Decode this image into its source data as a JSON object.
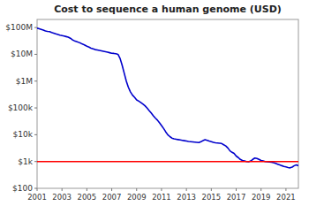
{
  "chart_data": {
    "type": "line",
    "title": "Cost to sequence a human genome (USD)",
    "color": "#0000cc",
    "log": "y",
    "grid": false,
    "xlim": [
      2001,
      2022
    ],
    "ylim": [
      100,
      200000000
    ],
    "xticks": [
      2001,
      2003,
      2005,
      2007,
      2009,
      2011,
      2013,
      2015,
      2017,
      2019,
      2021
    ],
    "yticks": [
      {
        "value": 100,
        "label": "$100"
      },
      {
        "value": 1000,
        "label": "$1k"
      },
      {
        "value": 10000,
        "label": "$10k"
      },
      {
        "value": 100000,
        "label": "$100k"
      },
      {
        "value": 1000000,
        "label": "$1M"
      },
      {
        "value": 10000000,
        "label": "$10M"
      },
      {
        "value": 100000000,
        "label": "$100M"
      }
    ],
    "reference_line": {
      "value": 1000,
      "color": "#ff0000"
    },
    "x": [
      2001.0,
      2001.17,
      2001.33,
      2001.5,
      2001.67,
      2001.83,
      2002.0,
      2002.17,
      2002.33,
      2002.5,
      2002.67,
      2002.83,
      2003.0,
      2003.17,
      2003.33,
      2003.5,
      2003.67,
      2003.83,
      2004.0,
      2004.17,
      2004.33,
      2004.5,
      2004.67,
      2004.83,
      2005.0,
      2005.17,
      2005.33,
      2005.5,
      2005.67,
      2005.83,
      2006.0,
      2006.17,
      2006.33,
      2006.5,
      2006.67,
      2006.83,
      2007.0,
      2007.17,
      2007.33,
      2007.5,
      2007.67,
      2007.83,
      2008.0,
      2008.17,
      2008.33,
      2008.5,
      2008.67,
      2008.83,
      2009.0,
      2009.17,
      2009.33,
      2009.5,
      2009.67,
      2009.83,
      2010.0,
      2010.17,
      2010.33,
      2010.5,
      2010.67,
      2010.83,
      2011.0,
      2011.17,
      2011.33,
      2011.5,
      2011.67,
      2011.83,
      2012.0,
      2012.17,
      2012.33,
      2012.5,
      2012.67,
      2012.83,
      2013.0,
      2013.17,
      2013.33,
      2013.5,
      2013.67,
      2013.83,
      2014.0,
      2014.17,
      2014.33,
      2014.5,
      2014.67,
      2014.83,
      2015.0,
      2015.17,
      2015.33,
      2015.5,
      2015.67,
      2015.83,
      2016.0,
      2016.17,
      2016.33,
      2016.5,
      2016.67,
      2016.83,
      2017.0,
      2017.17,
      2017.33,
      2017.5,
      2017.67,
      2017.83,
      2018.0,
      2018.17,
      2018.33,
      2018.5,
      2018.67,
      2018.83,
      2019.0,
      2019.17,
      2019.33,
      2019.5,
      2019.67,
      2019.83,
      2020.0,
      2020.17,
      2020.33,
      2020.5,
      2020.67,
      2020.83,
      2021.0,
      2021.17,
      2021.33,
      2021.5,
      2021.67,
      2021.83,
      2022.0
    ],
    "values": [
      95000000,
      90000000,
      85000000,
      80000000,
      75000000,
      72000000,
      70000000,
      65000000,
      62000000,
      58000000,
      55000000,
      52000000,
      50000000,
      48000000,
      46000000,
      44000000,
      40000000,
      35000000,
      32000000,
      30000000,
      28000000,
      26000000,
      24000000,
      22000000,
      20000000,
      18500000,
      17000000,
      16000000,
      15000000,
      14500000,
      14000000,
      13500000,
      13000000,
      12500000,
      12000000,
      11500000,
      11000000,
      10800000,
      10500000,
      10000000,
      7000000,
      4000000,
      2000000,
      1000000,
      600000,
      400000,
      300000,
      250000,
      200000,
      180000,
      160000,
      140000,
      120000,
      100000,
      80000,
      65000,
      52000,
      42000,
      35000,
      28000,
      22000,
      17000,
      13000,
      10000,
      8500,
      7500,
      7000,
      6800,
      6600,
      6400,
      6200,
      6000,
      5800,
      5600,
      5500,
      5400,
      5300,
      5200,
      5100,
      5500,
      6000,
      6500,
      6200,
      5800,
      5500,
      5200,
      5000,
      4900,
      4800,
      4700,
      4200,
      3800,
      3200,
      2500,
      2200,
      2000,
      1600,
      1400,
      1200,
      1100,
      1050,
      1000,
      980,
      1050,
      1200,
      1350,
      1300,
      1200,
      1100,
      1050,
      1000,
      980,
      960,
      940,
      900,
      850,
      800,
      750,
      700,
      660,
      630,
      600,
      580,
      620,
      700,
      750,
      700
    ]
  }
}
